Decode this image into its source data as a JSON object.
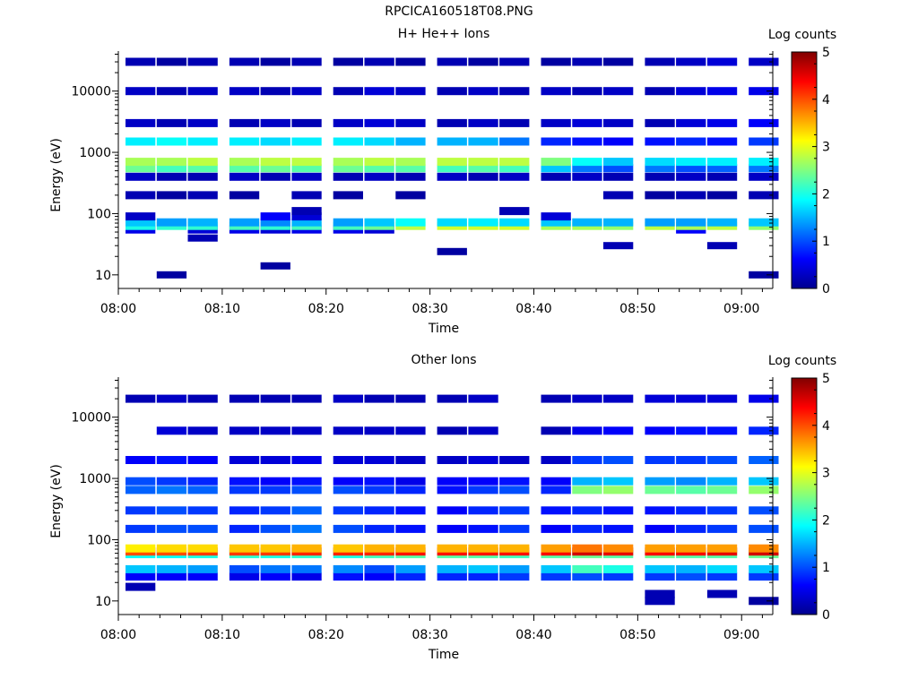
{
  "figure": {
    "file_title": "RPCICA160518T08.PNG"
  },
  "colorscale": {
    "label": "Log counts",
    "ticks": [
      0,
      1,
      2,
      3,
      4,
      5
    ],
    "stops": [
      "#00008f",
      "#0000ff",
      "#0080ff",
      "#00ffff",
      "#80ff80",
      "#ffff00",
      "#ff8000",
      "#ff0000",
      "#800000"
    ]
  },
  "chart_data": [
    {
      "type": "heatmap",
      "title": "H+ He++ Ions",
      "xlabel": "Time",
      "ylabel": "Energy (eV)",
      "x_scale": "time",
      "y_scale": "log",
      "xlim": [
        "08:00",
        "09:03"
      ],
      "ylim": [
        6,
        45000
      ],
      "xticks": [
        "08:00",
        "08:10",
        "08:20",
        "08:30",
        "08:40",
        "08:50",
        "09:00"
      ],
      "yticks": [
        10,
        100,
        1000,
        10000
      ],
      "ytick_labels": [
        "10",
        "100",
        "1000",
        "10000"
      ],
      "colorbar": {
        "label": "Log counts",
        "range": [
          0,
          5
        ]
      },
      "time_columns": [
        "08:00",
        "08:03",
        "08:06",
        "08:10",
        "08:13",
        "08:16",
        "08:20",
        "08:23",
        "08:26",
        "08:30",
        "08:33",
        "08:36",
        "08:40",
        "08:43",
        "08:46",
        "08:50",
        "08:53",
        "08:56",
        "09:00"
      ],
      "energy_bands_eV": [
        {
          "energy": 10,
          "values": [
            null,
            0.1,
            null,
            null,
            null,
            null,
            null,
            null,
            null,
            null,
            null,
            null,
            null,
            null,
            null,
            null,
            null,
            null,
            0.1
          ]
        },
        {
          "energy": 14,
          "values": [
            null,
            null,
            null,
            null,
            0.1,
            null,
            null,
            null,
            null,
            null,
            null,
            null,
            null,
            null,
            null,
            null,
            null,
            null,
            null
          ]
        },
        {
          "energy": 24,
          "values": [
            null,
            null,
            null,
            null,
            null,
            null,
            null,
            null,
            null,
            0.1,
            null,
            null,
            null,
            null,
            null,
            null,
            null,
            null,
            null
          ]
        },
        {
          "energy": 30,
          "values": [
            null,
            null,
            null,
            null,
            null,
            null,
            null,
            null,
            null,
            null,
            null,
            null,
            null,
            null,
            0.2,
            null,
            null,
            0.2,
            null
          ]
        },
        {
          "energy": 40,
          "values": [
            null,
            null,
            0.2,
            null,
            null,
            null,
            null,
            null,
            null,
            null,
            null,
            null,
            null,
            null,
            null,
            null,
            null,
            null,
            null
          ]
        },
        {
          "energy": 55,
          "values": [
            0.5,
            null,
            0.4,
            0.5,
            0.4,
            0.5,
            0.5,
            0.4,
            null,
            null,
            null,
            null,
            null,
            null,
            null,
            null,
            0.6,
            null,
            null
          ]
        },
        {
          "energy": 63,
          "values": [
            2.0,
            2.1,
            2.1,
            2.2,
            2.1,
            2.2,
            2.2,
            2.4,
            2.8,
            2.9,
            2.9,
            2.9,
            2.7,
            2.7,
            2.6,
            2.8,
            2.7,
            2.8,
            2.6
          ]
        },
        {
          "energy": 72,
          "values": [
            1.6,
            1.4,
            1.5,
            1.4,
            1.3,
            1.5,
            1.4,
            1.6,
            1.9,
            1.7,
            1.8,
            1.7,
            1.6,
            1.5,
            1.5,
            1.4,
            1.4,
            1.5,
            1.6
          ]
        },
        {
          "energy": 90,
          "values": [
            0.3,
            null,
            null,
            null,
            0.6,
            0.4,
            null,
            null,
            null,
            null,
            null,
            null,
            0.4,
            null,
            null,
            null,
            null,
            null,
            null
          ]
        },
        {
          "energy": 110,
          "values": [
            null,
            null,
            null,
            null,
            null,
            0.2,
            null,
            null,
            null,
            null,
            null,
            0.2,
            null,
            null,
            null,
            null,
            null,
            null,
            null
          ]
        },
        {
          "energy": 200,
          "values": [
            0.2,
            0.1,
            0.2,
            0.1,
            null,
            0.2,
            0.1,
            null,
            0.1,
            null,
            null,
            null,
            null,
            null,
            0.2,
            0.1,
            0.2,
            0.1,
            0.2
          ]
        },
        {
          "energy": 400,
          "values": [
            0.3,
            0.2,
            0.2,
            0.3,
            0.2,
            0.3,
            0.2,
            0.3,
            0.2,
            0.3,
            0.2,
            0.3,
            0.2,
            0.3,
            0.2,
            0.2,
            0.3,
            0.2,
            0.3
          ]
        },
        {
          "energy": 550,
          "values": [
            2.4,
            2.2,
            2.3,
            2.3,
            2.4,
            2.3,
            2.4,
            2.3,
            2.3,
            2.2,
            2.3,
            2.2,
            1.6,
            1.2,
            1.0,
            1.2,
            1.0,
            1.1,
            1.2
          ]
        },
        {
          "energy": 700,
          "values": [
            2.7,
            2.7,
            2.8,
            2.7,
            2.8,
            2.8,
            2.7,
            2.8,
            2.7,
            2.8,
            2.8,
            2.8,
            2.5,
            1.9,
            1.6,
            1.7,
            1.8,
            1.8,
            1.8
          ]
        },
        {
          "energy": 1500,
          "values": [
            1.8,
            1.9,
            1.8,
            1.8,
            1.7,
            1.8,
            1.8,
            1.7,
            1.5,
            1.5,
            1.5,
            1.2,
            0.8,
            0.7,
            0.6,
            0.7,
            0.8,
            0.7,
            0.9
          ]
        },
        {
          "energy": 3000,
          "values": [
            0.3,
            0.2,
            0.3,
            0.2,
            0.3,
            0.2,
            0.3,
            0.4,
            0.3,
            0.2,
            0.3,
            0.2,
            0.3,
            0.4,
            0.3,
            0.2,
            0.4,
            0.5,
            0.6
          ]
        },
        {
          "energy": 10000,
          "values": [
            0.3,
            0.2,
            0.3,
            0.3,
            0.2,
            0.3,
            0.2,
            0.4,
            0.3,
            0.2,
            0.3,
            0.2,
            0.3,
            0.2,
            0.3,
            0.2,
            0.4,
            0.5,
            0.5
          ]
        },
        {
          "energy": 30000,
          "values": [
            0.2,
            0.1,
            0.2,
            0.2,
            0.1,
            0.2,
            0.1,
            0.2,
            0.1,
            0.2,
            0.1,
            0.2,
            0.1,
            0.2,
            0.1,
            0.2,
            0.3,
            0.4,
            0.3
          ]
        }
      ]
    },
    {
      "type": "heatmap",
      "title": "Other Ions",
      "xlabel": "Time",
      "ylabel": "Energy (eV)",
      "x_scale": "time",
      "y_scale": "log",
      "xlim": [
        "08:00",
        "09:03"
      ],
      "ylim": [
        6,
        45000
      ],
      "xticks": [
        "08:00",
        "08:10",
        "08:20",
        "08:30",
        "08:40",
        "08:50",
        "09:00"
      ],
      "yticks": [
        10,
        100,
        1000,
        10000
      ],
      "ytick_labels": [
        "10",
        "100",
        "1000",
        "10000"
      ],
      "colorbar": {
        "label": "Log counts",
        "range": [
          0,
          5
        ]
      },
      "time_columns": [
        "08:00",
        "08:03",
        "08:06",
        "08:10",
        "08:13",
        "08:16",
        "08:20",
        "08:23",
        "08:26",
        "08:30",
        "08:33",
        "08:36",
        "08:40",
        "08:43",
        "08:46",
        "08:50",
        "08:53",
        "08:56",
        "09:00"
      ],
      "energy_bands_eV": [
        {
          "energy": 10,
          "values": [
            null,
            null,
            null,
            null,
            null,
            null,
            null,
            null,
            null,
            null,
            null,
            null,
            null,
            null,
            null,
            0.2,
            null,
            null,
            0.1
          ]
        },
        {
          "energy": 13,
          "values": [
            null,
            null,
            null,
            null,
            null,
            null,
            null,
            null,
            null,
            null,
            null,
            null,
            null,
            null,
            null,
            0.2,
            null,
            0.2,
            null
          ]
        },
        {
          "energy": 17,
          "values": [
            0.2,
            null,
            null,
            null,
            null,
            null,
            null,
            null,
            null,
            null,
            null,
            null,
            null,
            null,
            null,
            null,
            null,
            null,
            null
          ]
        },
        {
          "energy": 25,
          "values": [
            0.6,
            0.6,
            0.6,
            0.5,
            0.6,
            0.5,
            0.7,
            0.6,
            0.8,
            0.8,
            0.8,
            0.9,
            0.9,
            1.0,
            0.9,
            0.9,
            1.0,
            0.9,
            0.9
          ]
        },
        {
          "energy": 33,
          "values": [
            1.6,
            1.5,
            1.4,
            1.0,
            1.2,
            1.2,
            1.3,
            1.0,
            1.4,
            1.5,
            1.6,
            1.4,
            1.6,
            2.2,
            2.0,
            1.6,
            1.5,
            1.7,
            1.6
          ]
        },
        {
          "energy": 58,
          "values": [
            1.9,
            1.9,
            2.0,
            2.1,
            2.0,
            2.1,
            2.0,
            2.2,
            2.3,
            2.3,
            2.3,
            2.2,
            2.3,
            2.4,
            2.3,
            2.4,
            2.3,
            2.3,
            2.4
          ]
        },
        {
          "energy": 64,
          "values": [
            4.0,
            4.0,
            4.1,
            4.1,
            4.1,
            4.2,
            4.2,
            4.2,
            4.3,
            4.3,
            4.3,
            4.3,
            4.4,
            4.6,
            4.5,
            4.4,
            4.4,
            4.5,
            4.6
          ]
        },
        {
          "energy": 72,
          "values": [
            3.2,
            3.3,
            3.3,
            3.4,
            3.4,
            3.5,
            3.4,
            3.5,
            3.5,
            3.5,
            3.5,
            3.5,
            3.6,
            3.8,
            3.7,
            3.6,
            3.6,
            3.6,
            3.7
          ]
        },
        {
          "energy": 150,
          "values": [
            0.9,
            1.0,
            1.0,
            0.8,
            1.0,
            1.2,
            1.0,
            0.8,
            0.7,
            0.6,
            0.7,
            0.9,
            0.6,
            0.8,
            0.7,
            0.6,
            0.8,
            0.9,
            1.0
          ]
        },
        {
          "energy": 300,
          "values": [
            0.9,
            1.0,
            0.9,
            0.8,
            0.9,
            1.1,
            0.9,
            0.8,
            0.7,
            0.6,
            0.8,
            0.9,
            0.7,
            0.8,
            0.7,
            0.7,
            0.8,
            0.9,
            1.0
          ]
        },
        {
          "energy": 650,
          "values": [
            1.1,
            1.2,
            1.1,
            0.9,
            0.9,
            1.0,
            1.0,
            0.9,
            0.8,
            0.7,
            0.9,
            1.0,
            0.8,
            2.5,
            2.6,
            2.4,
            2.3,
            2.4,
            2.6
          ]
        },
        {
          "energy": 900,
          "values": [
            1.0,
            0.9,
            0.8,
            0.7,
            0.6,
            0.7,
            0.6,
            0.7,
            0.5,
            0.6,
            0.6,
            0.7,
            0.6,
            1.5,
            1.6,
            1.4,
            1.3,
            1.5,
            1.6
          ]
        },
        {
          "energy": 2000,
          "values": [
            0.6,
            0.7,
            0.6,
            0.4,
            0.4,
            0.5,
            0.4,
            0.4,
            0.3,
            0.3,
            0.4,
            0.3,
            0.3,
            0.9,
            1.0,
            0.9,
            0.9,
            1.0,
            1.1
          ]
        },
        {
          "energy": 6000,
          "values": [
            null,
            0.4,
            0.3,
            0.3,
            0.3,
            0.3,
            0.3,
            0.3,
            0.3,
            0.2,
            0.3,
            null,
            0.2,
            0.5,
            0.6,
            0.6,
            0.7,
            0.7,
            0.8
          ]
        },
        {
          "energy": 20000,
          "values": [
            0.2,
            0.3,
            0.2,
            0.2,
            0.2,
            0.2,
            0.3,
            0.2,
            0.2,
            0.2,
            0.3,
            null,
            0.2,
            0.3,
            0.3,
            0.4,
            0.4,
            0.4,
            0.5
          ]
        }
      ]
    }
  ]
}
